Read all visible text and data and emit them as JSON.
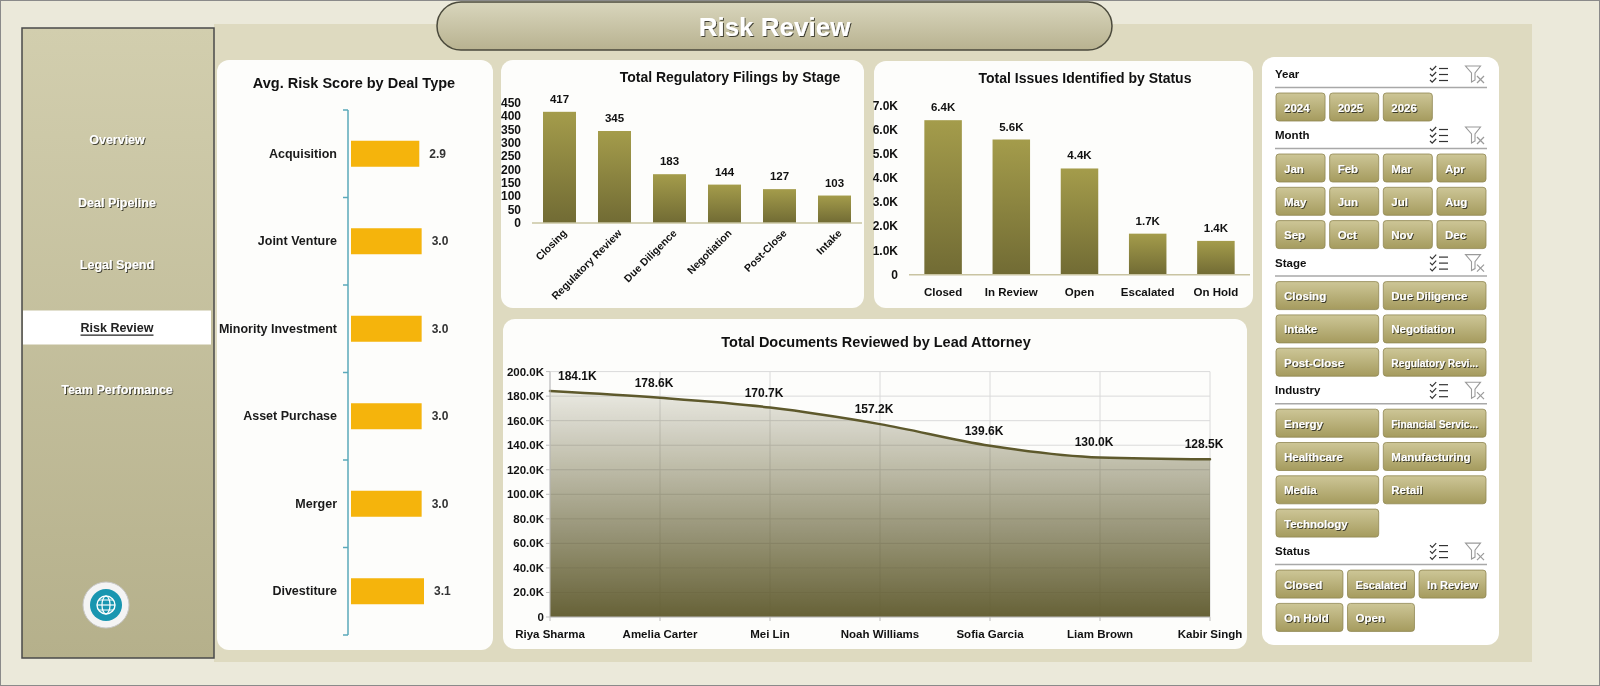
{
  "chart_data": [
    {
      "type": "other",
      "title": "Risk Review"
    },
    {
      "type": "other",
      "annotations": [
        "Overview",
        "Deal Pipeline",
        "Legal Spend",
        "Risk Review",
        "Team Performance"
      ]
    },
    {
      "type": "bar",
      "title": "Avg. Risk Score by Deal Type",
      "orientation": "horizontal",
      "categories": [
        "Acquisition",
        "Joint Venture",
        "Minority Investment",
        "Asset Purchase",
        "Merger",
        "Divestiture"
      ],
      "values": [
        2.9,
        3.0,
        3.0,
        3.0,
        3.0,
        3.1
      ],
      "value_labels": [
        "2.9",
        "3.0",
        "3.0",
        "3.0",
        "3.0",
        "3.1"
      ],
      "color": "#f5b40c"
    },
    {
      "type": "bar",
      "title": "Total Regulatory Filings by Stage",
      "categories": [
        "Closing",
        "Regulatory Review",
        "Due Diligence",
        "Negotiation",
        "Post-Close",
        "Intake"
      ],
      "values": [
        417,
        345,
        183,
        144,
        127,
        103
      ],
      "color": "#8c8540",
      "ylim": [
        0,
        450
      ],
      "yticks": [
        0,
        50,
        100,
        150,
        200,
        250,
        300,
        350,
        400,
        450
      ],
      "data_labels": true
    },
    {
      "type": "bar",
      "title": "Total Issues Identified by Status",
      "categories": [
        "Closed",
        "In Review",
        "Open",
        "Escalated",
        "On Hold"
      ],
      "values": [
        6400,
        5600,
        4400,
        1700,
        1400
      ],
      "value_labels": [
        "6.4K",
        "5.6K",
        "4.4K",
        "1.7K",
        "1.4K"
      ],
      "color": "#8c8540",
      "ylim": [
        0,
        7000
      ],
      "yticks": [
        0,
        {
          "value": 1000,
          "label": "1.0K"
        },
        {
          "value": 2000,
          "label": "2.0K"
        },
        {
          "value": 3000,
          "label": "3.0K"
        },
        {
          "value": 4000,
          "label": "4.0K"
        },
        {
          "value": 5000,
          "label": "5.0K"
        },
        {
          "value": 6000,
          "label": "6.0K"
        },
        {
          "value": 7000,
          "label": "7.0K"
        }
      ]
    },
    {
      "type": "area",
      "title": "Total Documents Reviewed by Lead Attorney",
      "categories": [
        "Riya Sharma",
        "Amelia Carter",
        "Mei Lin",
        "Noah Williams",
        "Sofia Garcia",
        "Liam Brown",
        "Kabir Singh"
      ],
      "values": [
        184100,
        178600,
        170700,
        157200,
        139600,
        130000,
        128500
      ],
      "value_labels": [
        "184.1K",
        "178.6K",
        "170.7K",
        "157.2K",
        "139.6K",
        "130.0K",
        "128.5K"
      ],
      "color": "#5e592c",
      "ylim": [
        0,
        200000
      ],
      "yticks": [
        0,
        {
          "value": 20000,
          "label": "20.0K"
        },
        {
          "value": 40000,
          "label": "40.0K"
        },
        {
          "value": 60000,
          "label": "60.0K"
        },
        {
          "value": 80000,
          "label": "80.0K"
        },
        {
          "value": 100000,
          "label": "100.0K"
        },
        {
          "value": 120000,
          "label": "120.0K"
        },
        {
          "value": 140000,
          "label": "140.0K"
        },
        {
          "value": 160000,
          "label": "160.0K"
        },
        {
          "value": 180000,
          "label": "180.0K"
        },
        {
          "value": 200000,
          "label": "200.0K"
        }
      ],
      "grid": true
    },
    {
      "type": "other",
      "title": "Year",
      "annotations": [
        "2024",
        "2025",
        "2026"
      ]
    },
    {
      "type": "other",
      "title": "Month",
      "annotations": [
        "Jan",
        "Feb",
        "Mar",
        "Apr",
        "May",
        "Jun",
        "Jul",
        "Aug",
        "Sep",
        "Oct",
        "Nov",
        "Dec"
      ]
    },
    {
      "type": "other",
      "title": "Stage",
      "annotations": [
        "Closing",
        "Due Diligence",
        "Intake",
        "Negotiation",
        "Post-Close",
        "Regulatory Revi..."
      ]
    },
    {
      "type": "other",
      "title": "Industry",
      "annotations": [
        "Energy",
        "Financial Servic...",
        "Healthcare",
        "Manufacturing",
        "Media",
        "Retail",
        "Technology"
      ]
    },
    {
      "type": "other",
      "title": "Status",
      "annotations": [
        "Closed",
        "Escalated",
        "In Review",
        "On Hold",
        "Open"
      ]
    }
  ]
}
